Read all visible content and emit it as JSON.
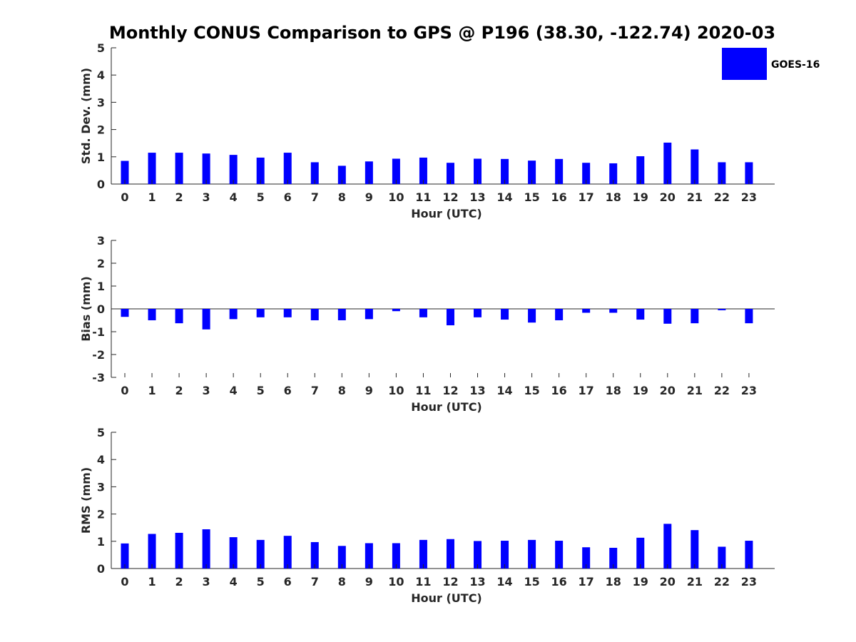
{
  "chart_data": [
    {
      "type": "bar",
      "title": "Monthly CONUS Comparison to GPS @ P196 (38.30, -122.74) 2020-03",
      "xlabel": "Hour (UTC)",
      "ylabel": "Std. Dev. (mm)",
      "ylim": [
        0,
        5
      ],
      "yticks": [
        "0",
        "1",
        "2",
        "3",
        "4",
        "5"
      ],
      "categories": [
        "0",
        "1",
        "2",
        "3",
        "4",
        "5",
        "6",
        "7",
        "8",
        "9",
        "10",
        "11",
        "12",
        "13",
        "14",
        "15",
        "16",
        "17",
        "18",
        "19",
        "20",
        "21",
        "22",
        "23"
      ],
      "series": [
        {
          "name": "GOES-16",
          "color": "#0000ff",
          "values": [
            0.85,
            1.15,
            1.15,
            1.12,
            1.07,
            0.97,
            1.15,
            0.8,
            0.67,
            0.83,
            0.93,
            0.97,
            0.78,
            0.93,
            0.92,
            0.86,
            0.92,
            0.78,
            0.76,
            1.02,
            1.52,
            1.27,
            0.8,
            0.8
          ]
        }
      ],
      "legend": {
        "label": "GOES-16",
        "placement": "top-right"
      }
    },
    {
      "type": "bar",
      "xlabel": "Hour (UTC)",
      "ylabel": "Bias (mm)",
      "ylim": [
        -3,
        3
      ],
      "yticks": [
        "-3",
        "-2",
        "-1",
        "0",
        "1",
        "2",
        "3"
      ],
      "categories": [
        "0",
        "1",
        "2",
        "3",
        "4",
        "5",
        "6",
        "7",
        "8",
        "9",
        "10",
        "11",
        "12",
        "13",
        "14",
        "15",
        "16",
        "17",
        "18",
        "19",
        "20",
        "21",
        "22",
        "23"
      ],
      "series": [
        {
          "name": "GOES-16",
          "color": "#0000ff",
          "values": [
            -0.35,
            -0.5,
            -0.63,
            -0.9,
            -0.45,
            -0.37,
            -0.37,
            -0.5,
            -0.5,
            -0.45,
            -0.1,
            -0.37,
            -0.72,
            -0.37,
            -0.47,
            -0.6,
            -0.5,
            -0.17,
            -0.17,
            -0.47,
            -0.65,
            -0.63,
            -0.06,
            -0.63
          ]
        }
      ]
    },
    {
      "type": "bar",
      "xlabel": "Hour (UTC)",
      "ylabel": "RMS (mm)",
      "ylim": [
        0,
        5
      ],
      "yticks": [
        "0",
        "1",
        "2",
        "3",
        "4",
        "5"
      ],
      "categories": [
        "0",
        "1",
        "2",
        "3",
        "4",
        "5",
        "6",
        "7",
        "8",
        "9",
        "10",
        "11",
        "12",
        "13",
        "14",
        "15",
        "16",
        "17",
        "18",
        "19",
        "20",
        "21",
        "22",
        "23"
      ],
      "series": [
        {
          "name": "GOES-16",
          "color": "#0000ff",
          "values": [
            0.92,
            1.27,
            1.31,
            1.44,
            1.15,
            1.05,
            1.2,
            0.97,
            0.83,
            0.93,
            0.93,
            1.05,
            1.08,
            1.01,
            1.02,
            1.05,
            1.02,
            0.78,
            0.76,
            1.13,
            1.64,
            1.41,
            0.8,
            1.02
          ]
        }
      ]
    }
  ]
}
